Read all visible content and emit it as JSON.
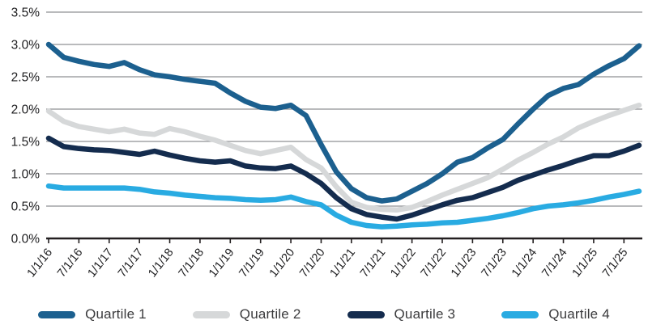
{
  "chart_data": {
    "type": "line",
    "title": "",
    "xlabel": "",
    "ylabel": "",
    "ylim": [
      0.0,
      3.5
    ],
    "y_tick_step": 0.5,
    "y_tick_labels": [
      "0.0%",
      "0.5%",
      "1.0%",
      "1.5%",
      "2.0%",
      "2.5%",
      "3.0%",
      "3.5%"
    ],
    "grid": "horizontal",
    "legend_position": "bottom",
    "x": [
      "1/1/16",
      "4/1/16",
      "7/1/16",
      "10/1/16",
      "1/1/17",
      "4/1/17",
      "7/1/17",
      "10/1/17",
      "1/1/18",
      "4/1/18",
      "7/1/18",
      "10/1/18",
      "1/1/19",
      "4/1/19",
      "7/1/19",
      "10/1/19",
      "1/1/20",
      "4/1/20",
      "7/1/20",
      "10/1/20",
      "1/1/21",
      "4/1/21",
      "7/1/21",
      "10/1/21",
      "1/1/22",
      "4/1/22",
      "7/1/22",
      "10/1/22",
      "1/1/23",
      "4/1/23",
      "7/1/23",
      "10/1/23",
      "1/1/24",
      "4/1/24",
      "7/1/24",
      "10/1/24",
      "1/1/25",
      "4/1/25",
      "7/1/25",
      "10/1/25"
    ],
    "x_tick_labels": [
      "1/1/16",
      "7/1/16",
      "1/1/17",
      "7/1/17",
      "1/1/18",
      "7/1/18",
      "1/1/19",
      "7/1/19",
      "1/1/20",
      "7/1/20",
      "1/1/21",
      "7/1/21",
      "1/1/22",
      "7/1/22",
      "1/1/23",
      "7/1/23",
      "1/1/24",
      "7/1/24",
      "1/1/25",
      "7/1/25"
    ],
    "x_tick_every": 2,
    "series": [
      {
        "name": "Quartile 1",
        "color": "#1c608f",
        "values": [
          3.0,
          2.8,
          2.74,
          2.69,
          2.66,
          2.72,
          2.61,
          2.53,
          2.5,
          2.46,
          2.43,
          2.4,
          2.25,
          2.12,
          2.03,
          2.01,
          2.06,
          1.9,
          1.45,
          1.03,
          0.77,
          0.63,
          0.58,
          0.61,
          0.73,
          0.85,
          1.0,
          1.18,
          1.25,
          1.4,
          1.53,
          1.77,
          2.0,
          2.21,
          2.32,
          2.38,
          2.54,
          2.67,
          2.78,
          2.98
        ]
      },
      {
        "name": "Quartile 2",
        "color": "#d6d8d9",
        "values": [
          1.97,
          1.81,
          1.73,
          1.69,
          1.65,
          1.69,
          1.63,
          1.61,
          1.7,
          1.65,
          1.58,
          1.52,
          1.44,
          1.36,
          1.31,
          1.36,
          1.41,
          1.22,
          1.09,
          0.8,
          0.56,
          0.48,
          0.45,
          0.44,
          0.48,
          0.57,
          0.67,
          0.76,
          0.85,
          0.94,
          1.07,
          1.21,
          1.33,
          1.46,
          1.57,
          1.71,
          1.81,
          1.9,
          1.98,
          2.06
        ]
      },
      {
        "name": "Quartile 3",
        "color": "#142c4e",
        "values": [
          1.55,
          1.42,
          1.39,
          1.37,
          1.36,
          1.33,
          1.3,
          1.35,
          1.29,
          1.24,
          1.2,
          1.18,
          1.2,
          1.12,
          1.09,
          1.08,
          1.12,
          1.0,
          0.85,
          0.63,
          0.46,
          0.37,
          0.33,
          0.3,
          0.36,
          0.44,
          0.52,
          0.59,
          0.63,
          0.71,
          0.79,
          0.9,
          0.98,
          1.06,
          1.13,
          1.21,
          1.28,
          1.28,
          1.35,
          1.44
        ]
      },
      {
        "name": "Quartile 4",
        "color": "#29abe2",
        "values": [
          0.81,
          0.78,
          0.78,
          0.78,
          0.78,
          0.78,
          0.76,
          0.72,
          0.7,
          0.67,
          0.65,
          0.63,
          0.62,
          0.6,
          0.59,
          0.6,
          0.64,
          0.57,
          0.52,
          0.36,
          0.25,
          0.2,
          0.18,
          0.19,
          0.21,
          0.22,
          0.24,
          0.25,
          0.28,
          0.31,
          0.35,
          0.4,
          0.46,
          0.5,
          0.52,
          0.55,
          0.59,
          0.64,
          0.68,
          0.73
        ]
      }
    ],
    "draw_order": [
      1,
      3,
      2,
      0
    ]
  },
  "style": {
    "gridline_color": "#8f9194",
    "axis_color": "#231f20",
    "tick_color": "#231f20",
    "y_label_color": "#1d1d1f",
    "x_label_color": "#1d1d1f",
    "background": "#ffffff"
  }
}
